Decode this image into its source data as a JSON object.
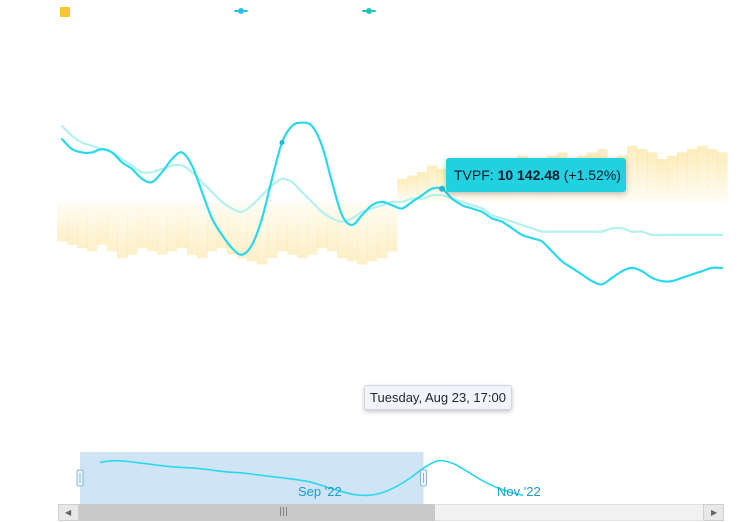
{
  "colors": {
    "volume": "#f7c72d",
    "series_dark": "#2ad8ee",
    "series_light": "#b3f1ee",
    "series_teal": "#24c3b9",
    "tooltip_bg": "#21d1df"
  },
  "legend": [
    {
      "name": "",
      "type": "area",
      "color": "#f7c72d"
    },
    {
      "name": "",
      "type": "line",
      "color": "#2cbfe4"
    },
    {
      "name": "",
      "type": "line",
      "color": "#24c3b9"
    }
  ],
  "tooltip": {
    "symbol": "TVPF:",
    "value": "10 142.48",
    "change": "(+1.52%)"
  },
  "crosshair_label": "Tuesday, Aug 23, 17:00",
  "navigator": {
    "labels": [
      "Sep '22",
      "Nov '22"
    ],
    "selection_start_fraction": 0.0,
    "selection_end_fraction": 0.535
  },
  "scrollbar": {
    "thumb_start_fraction": 0.0,
    "thumb_end_fraction": 0.57
  },
  "chart_data": {
    "type": "line",
    "title": "",
    "xlabel": "",
    "ylabel": "",
    "grid": false,
    "legend_placement": "top-left",
    "x": [
      0,
      1,
      2,
      3,
      4,
      5,
      6,
      7,
      8,
      9,
      10,
      11,
      12,
      13,
      14,
      15,
      16,
      17,
      18,
      19,
      20,
      21,
      22,
      23,
      24,
      25,
      26,
      27,
      28,
      29,
      30,
      31,
      32,
      33,
      34,
      35,
      36,
      37,
      38,
      39,
      40,
      41,
      42,
      43,
      44,
      45,
      46,
      47,
      48,
      49,
      50,
      51,
      52,
      53,
      54,
      55,
      56,
      57,
      58,
      59,
      60,
      61,
      62,
      63,
      64,
      65,
      66
    ],
    "ylim": [
      0,
      100
    ],
    "series": [
      {
        "name": "",
        "role": "primary",
        "values": [
          76,
          73,
          72,
          72,
          73,
          72,
          69,
          67,
          64,
          63,
          66,
          70,
          72,
          68,
          60,
          52,
          47,
          43,
          41,
          44,
          52,
          64,
          75,
          80,
          81,
          80,
          74,
          63,
          53,
          50,
          53,
          56,
          57,
          56,
          55,
          57,
          59,
          61,
          61,
          58,
          56,
          55,
          54,
          52,
          51,
          49,
          47,
          46,
          45,
          42,
          39,
          37,
          35,
          33,
          32,
          34,
          36,
          37,
          36,
          34,
          33,
          33,
          34,
          35,
          36,
          37,
          37
        ]
      },
      {
        "name": "",
        "role": "secondary",
        "values": [
          80,
          77,
          75,
          74,
          73,
          72,
          70,
          68,
          66,
          66,
          67,
          68,
          68,
          66,
          63,
          60,
          57,
          55,
          54,
          56,
          59,
          62,
          64,
          63,
          60,
          57,
          54,
          52,
          51,
          52,
          54,
          55,
          56,
          57,
          57,
          58,
          58,
          59,
          59,
          58,
          57,
          56,
          55,
          53,
          52,
          51,
          50,
          49,
          48,
          48,
          48,
          48,
          48,
          48,
          48,
          49,
          49,
          48,
          48,
          47,
          47,
          47,
          47,
          47,
          47,
          47,
          47
        ]
      },
      {
        "name": "",
        "role": "volume",
        "values": [
          45,
          44,
          43,
          42,
          44,
          42,
          40,
          41,
          43,
          42,
          41,
          42,
          43,
          41,
          40,
          42,
          43,
          41,
          40,
          39,
          38,
          40,
          42,
          41,
          40,
          41,
          43,
          42,
          40,
          39,
          38,
          39,
          40,
          42,
          64,
          65,
          66,
          68,
          67,
          66,
          68,
          67,
          69,
          68,
          67,
          70,
          71,
          70,
          69,
          71,
          72,
          70,
          71,
          72,
          73,
          70,
          71,
          74,
          73,
          72,
          70,
          71,
          72,
          73,
          74,
          73,
          72
        ]
      }
    ],
    "highlight": {
      "series": 0,
      "index": 38,
      "label": "TVPF: 10 142.48 (+1.52%)"
    }
  }
}
